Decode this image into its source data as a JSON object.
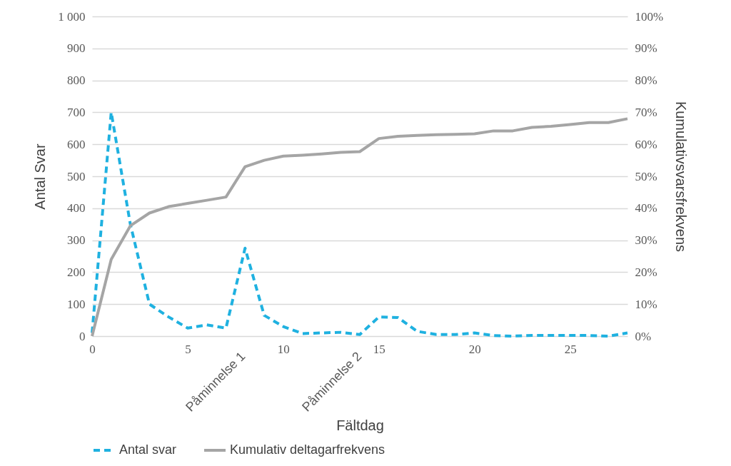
{
  "chart_data": {
    "type": "line",
    "xlabel": "Fältdag",
    "ylabel": "Antal Svar",
    "y2label": "Kumulativsvarsfrekvens",
    "x": [
      0,
      1,
      2,
      3,
      4,
      5,
      6,
      7,
      8,
      9,
      10,
      11,
      12,
      13,
      14,
      15,
      16,
      17,
      18,
      19,
      20,
      21,
      22,
      23,
      24,
      25,
      26,
      27,
      28
    ],
    "series": [
      {
        "name": "Antal svar",
        "color": "#1fb1e0",
        "line_style": "dashed",
        "values": [
          10,
          700,
          350,
          100,
          60,
          25,
          35,
          25,
          275,
          65,
          30,
          8,
          10,
          12,
          5,
          60,
          58,
          15,
          5,
          5,
          10,
          2,
          0,
          2,
          2,
          2,
          2,
          0,
          10
        ]
      },
      {
        "name": "Kumulativ deltagarfrekvens",
        "color": "#a5a5a5",
        "line_style": "solid",
        "axis": "y2",
        "values": [
          0,
          24,
          34.5,
          38.5,
          40.5,
          41.5,
          42.5,
          43.5,
          53,
          55,
          56.3,
          56.6,
          57,
          57.5,
          57.7,
          61.8,
          62.5,
          62.8,
          63,
          63.1,
          63.3,
          64.2,
          64.2,
          65.3,
          65.6,
          66.2,
          66.8,
          66.8,
          68
        ]
      }
    ],
    "xlim": [
      0,
      28
    ],
    "xticks": [
      0,
      5,
      10,
      15,
      20,
      25
    ],
    "annotations": [
      "Påminnelse 1",
      "Påminnelse 2"
    ],
    "ylim": [
      0,
      1000
    ],
    "yticks": [
      0,
      100,
      200,
      300,
      400,
      500,
      600,
      700,
      800,
      900,
      {
        "value": 1000,
        "label": "1 000"
      }
    ],
    "y2lim": [
      0,
      100
    ],
    "y2ticks": [
      {
        "value": 0,
        "label": "0%"
      },
      {
        "value": 10,
        "label": "10%"
      },
      {
        "value": 20,
        "label": "20%"
      },
      {
        "value": 30,
        "label": "30%"
      },
      {
        "value": 40,
        "label": "40%"
      },
      {
        "value": 50,
        "label": "50%"
      },
      {
        "value": 60,
        "label": "60%"
      },
      {
        "value": 70,
        "label": "70%"
      },
      {
        "value": 80,
        "label": "80%"
      },
      {
        "value": 90,
        "label": "90%"
      },
      {
        "value": 100,
        "label": "100%"
      }
    ],
    "grid": "y",
    "legend": "bottom",
    "marker": "none"
  }
}
